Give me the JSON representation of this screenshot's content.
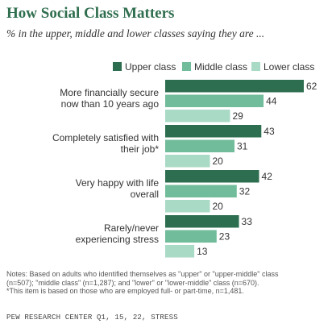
{
  "header": {
    "title": "How Social Class Matters",
    "subtitle": "% in the upper, middle and lower classes saying they are ..."
  },
  "chart_data": {
    "type": "bar",
    "orientation": "horizontal",
    "categories": [
      [
        "More financially secure",
        "now than 10 years ago"
      ],
      [
        "Completely satisfied with",
        "their job*"
      ],
      [
        "Very happy with life",
        "overall"
      ],
      [
        "Rarely/never",
        "experiencing stress"
      ]
    ],
    "series": [
      {
        "name": "Upper class",
        "color": "#2e6e50",
        "values": [
          62,
          43,
          42,
          33
        ]
      },
      {
        "name": "Middle class",
        "color": "#71bc9a",
        "values": [
          44,
          31,
          32,
          23
        ]
      },
      {
        "name": "Lower class",
        "color": "#a9dac6",
        "values": [
          29,
          20,
          20,
          13
        ]
      }
    ],
    "xlim": [
      0,
      62
    ],
    "legend": "top",
    "grid": false
  },
  "notes": [
    "Notes: Based on adults who identified themselves as \"upper\" or \"upper-middle\" class",
    "(n=507); \"middle class\" (n=1,287); and \"lower\" or \"lower-middle\" class (n=670).",
    "*This item is based on those who are employed full- or part-time, n=1,481."
  ],
  "source": "PEW RESEARCH CENTER Q1, 15, 22, STRESS"
}
